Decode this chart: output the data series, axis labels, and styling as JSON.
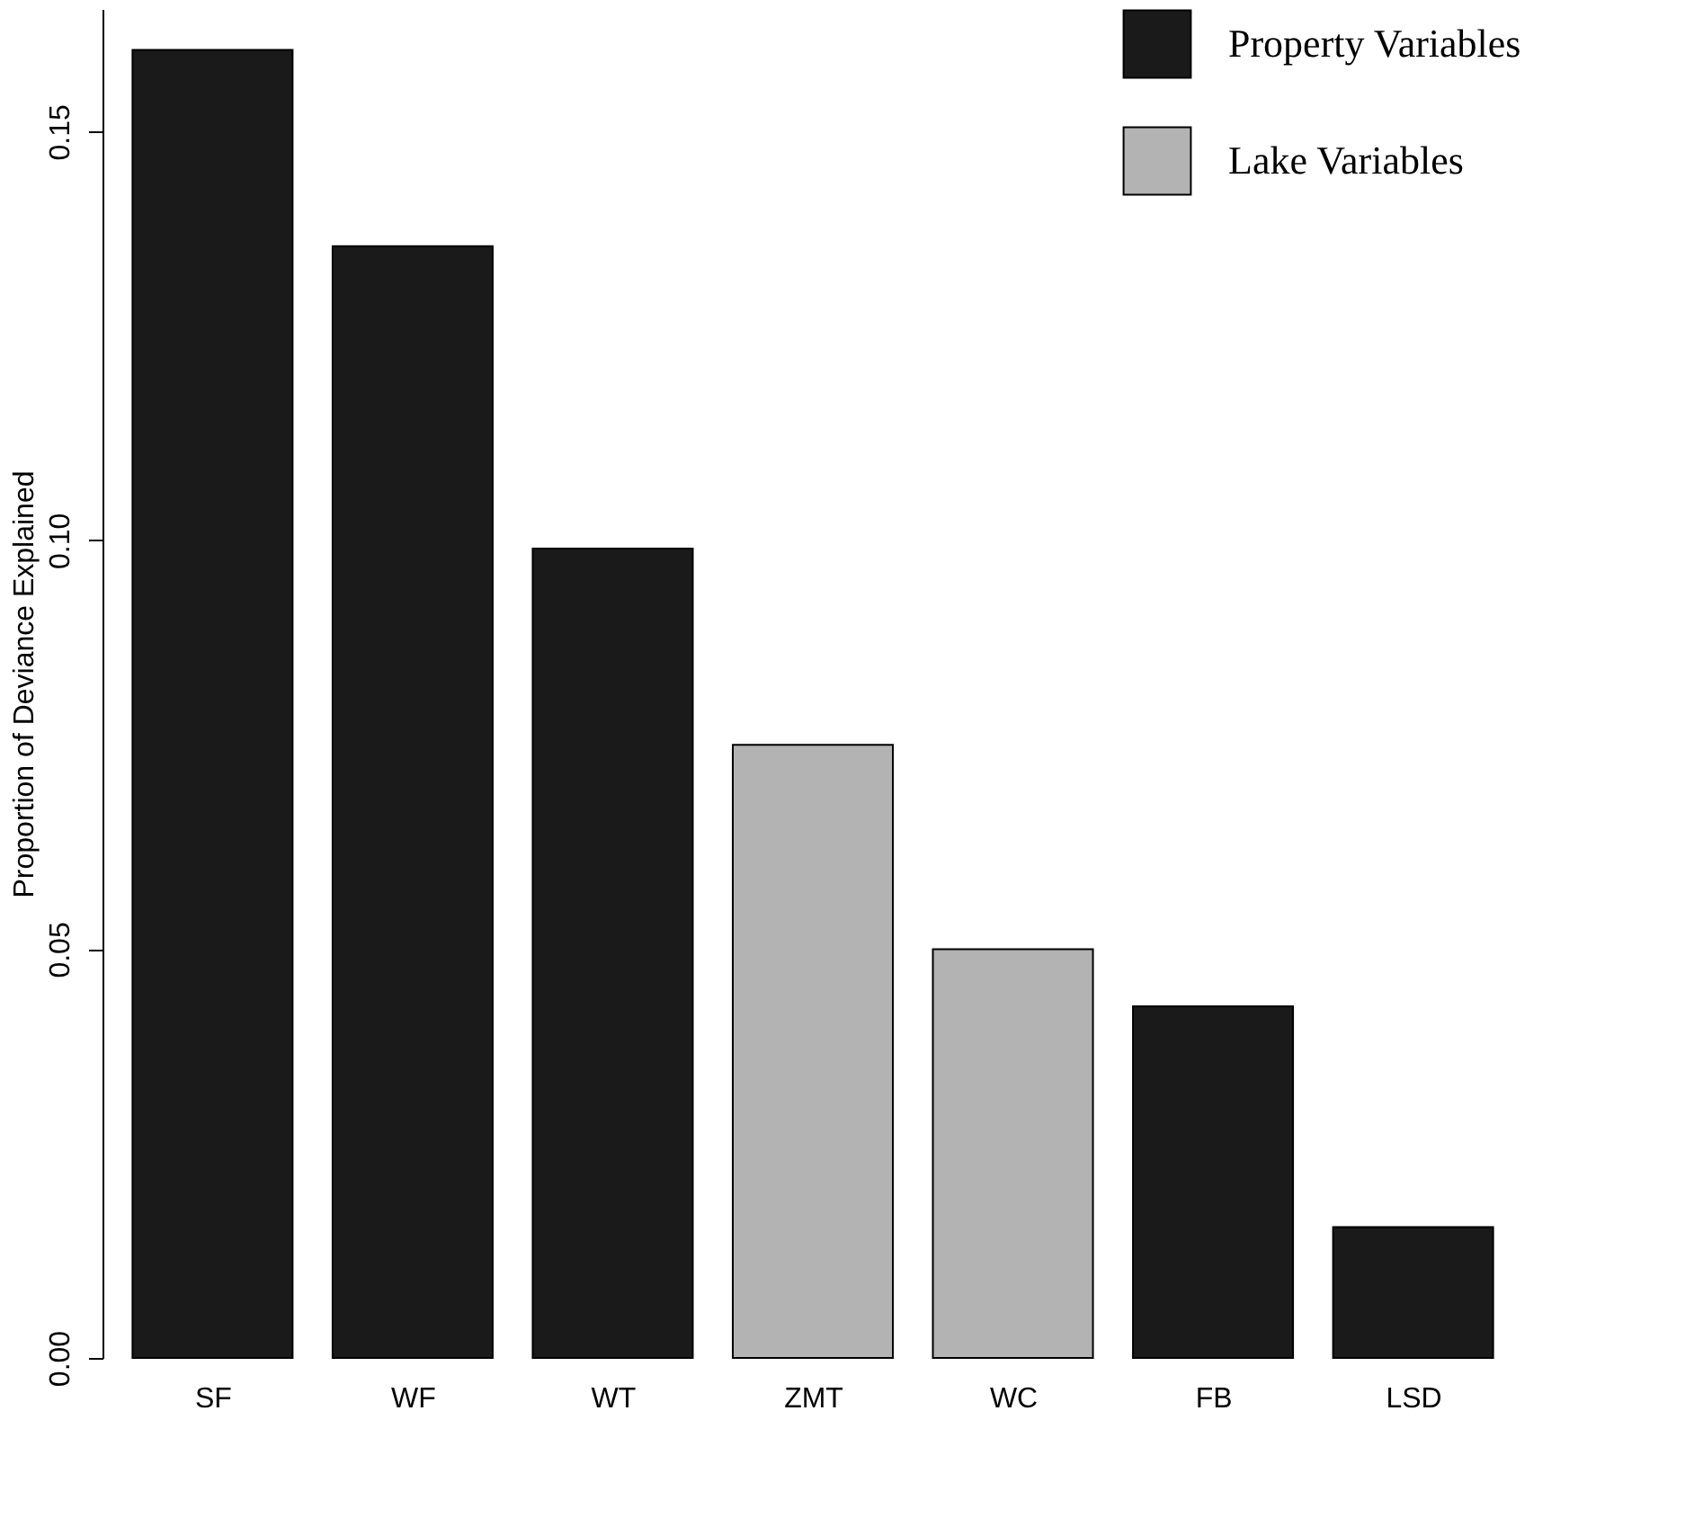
{
  "chart_data": {
    "type": "bar",
    "ylabel": "Proportion of Deviance Explained",
    "categories": [
      "SF",
      "WF",
      "WT",
      "ZMT",
      "WC",
      "FB",
      "LSD"
    ],
    "series": [
      {
        "name": "Property Variables",
        "color": "#1a1a1a",
        "values": [
          0.16,
          0.136,
          0.099,
          null,
          null,
          0.043,
          0.016
        ]
      },
      {
        "name": "Lake Variables",
        "color": "#b3b3b3",
        "values": [
          null,
          null,
          null,
          0.075,
          0.05,
          null,
          null
        ]
      }
    ],
    "ylim": [
      0,
      0.165
    ],
    "yticks": [
      {
        "value": 0,
        "label": "0.00"
      },
      0.05,
      {
        "value": 0.1,
        "label": "0.10"
      },
      0.15
    ],
    "grid": false,
    "legend": "top right"
  }
}
